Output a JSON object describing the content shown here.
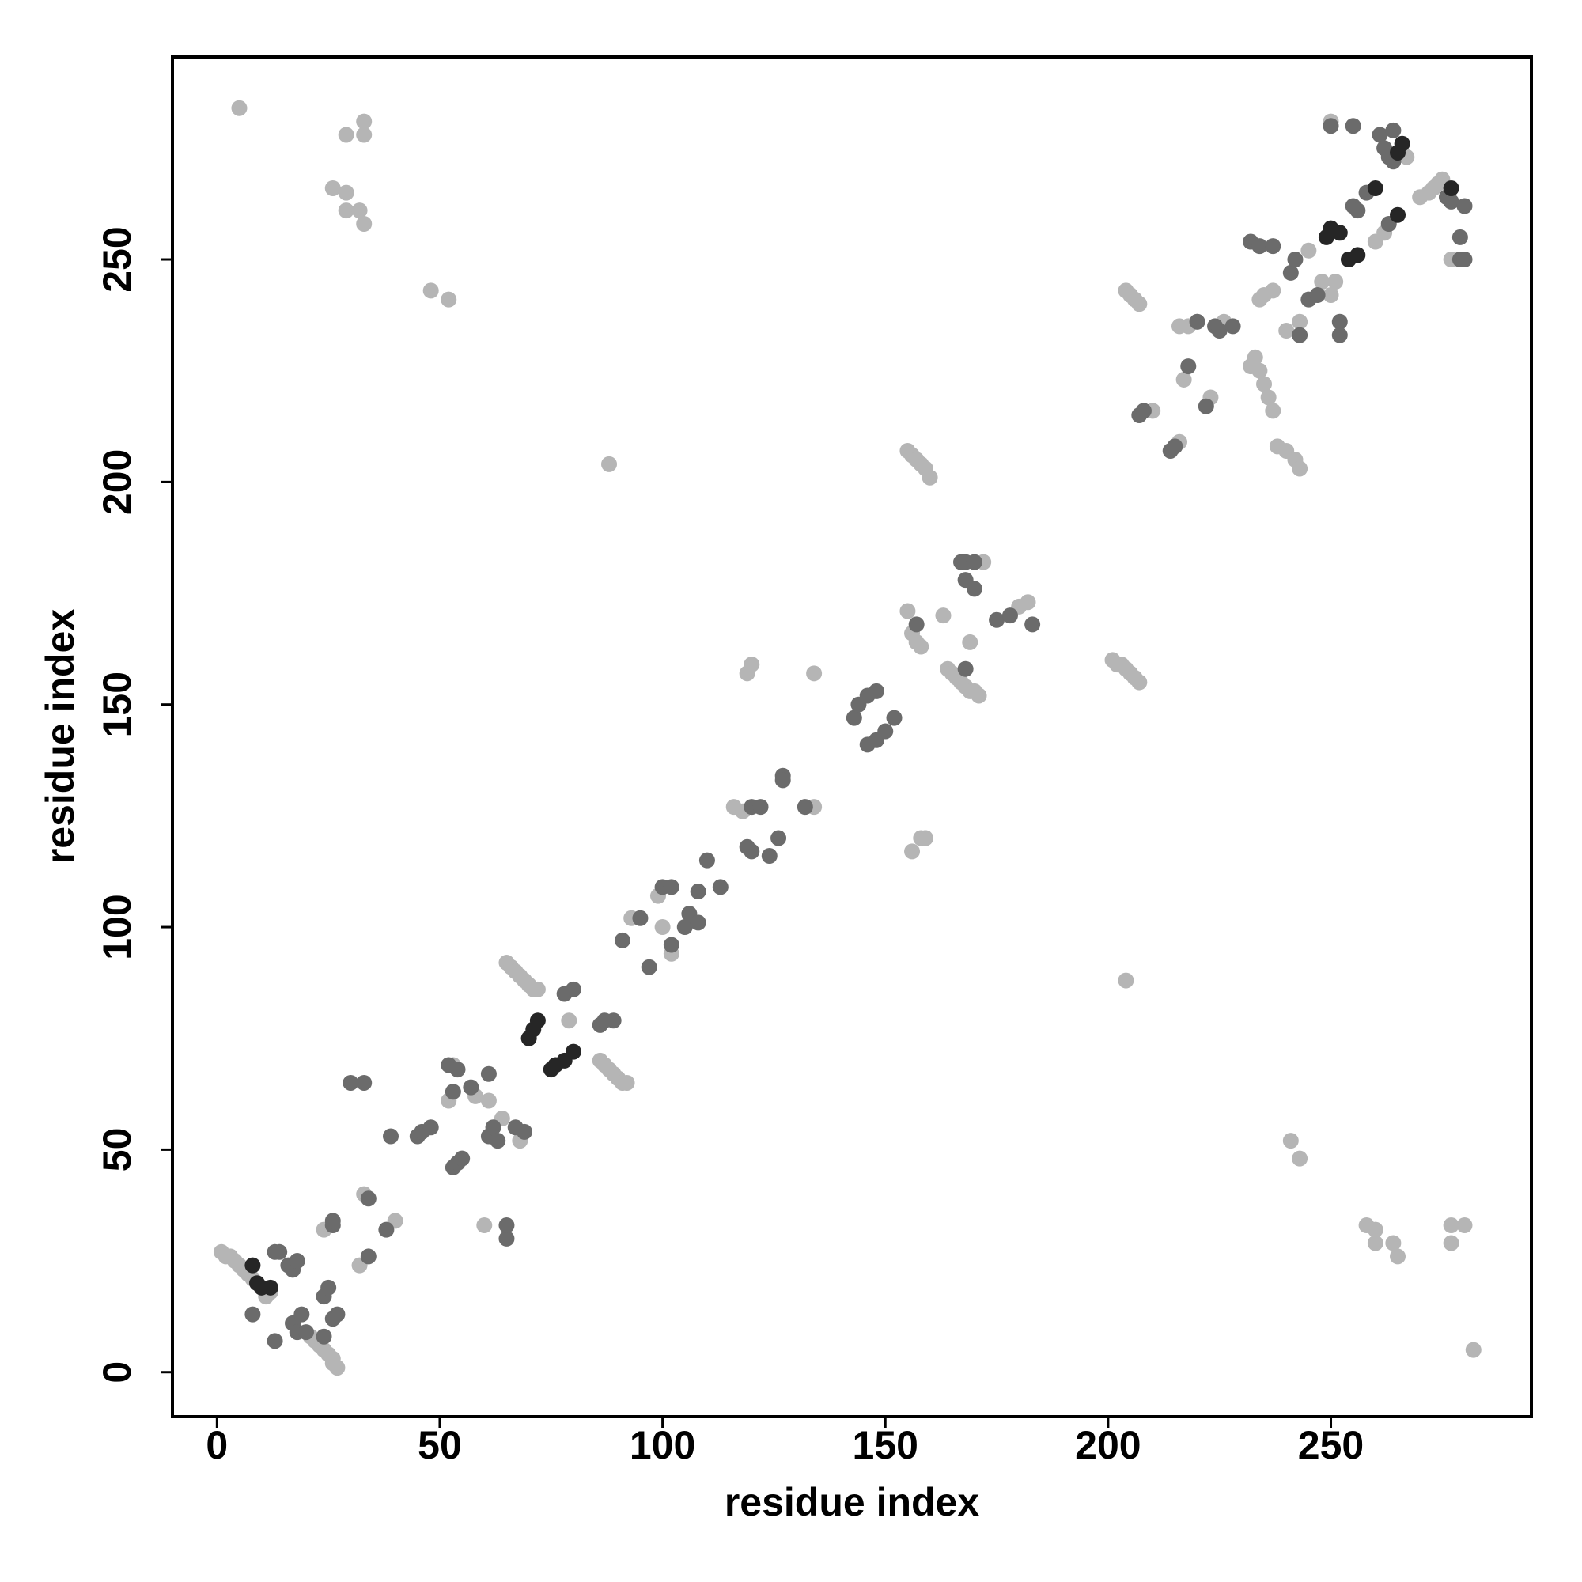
{
  "chart_data": {
    "type": "scatter",
    "xlabel": "residue index",
    "ylabel": "residue index",
    "xlim": [
      -10,
      295
    ],
    "ylim": [
      -10,
      295.5
    ],
    "xticks": [
      0,
      50,
      100,
      150,
      200,
      250
    ],
    "yticks": [
      0,
      50,
      100,
      150,
      200,
      250
    ],
    "grid": false,
    "series": [
      {
        "color": "#b5b5b5",
        "x": [
          5,
          29,
          33,
          33,
          26,
          29,
          29,
          32,
          33,
          48,
          52,
          88,
          204,
          241,
          243,
          258,
          260,
          260,
          264,
          265,
          277,
          277,
          280,
          282,
          1,
          2,
          3,
          4,
          5,
          6,
          7,
          8,
          11,
          12,
          27,
          26,
          26,
          25,
          24,
          23,
          22,
          21,
          17,
          24,
          32,
          33,
          40,
          61,
          60,
          55,
          53,
          52,
          58,
          63,
          64,
          68,
          65,
          66,
          67,
          68,
          69,
          70,
          71,
          72,
          79,
          86,
          87,
          88,
          89,
          90,
          91,
          92,
          93,
          99,
          102,
          100,
          116,
          118,
          134,
          119,
          120,
          134,
          155,
          156,
          157,
          158,
          159,
          156,
          158,
          159,
          155,
          156,
          157,
          158,
          159,
          160,
          163,
          164,
          165,
          166,
          167,
          168,
          169,
          170,
          171,
          169,
          172,
          180,
          182,
          201,
          202,
          203,
          204,
          205,
          206,
          207,
          204,
          205,
          206,
          207,
          210,
          216,
          217,
          216,
          218,
          220,
          223,
          226,
          232,
          233,
          234,
          235,
          236,
          237,
          234,
          235,
          237,
          238,
          240,
          242,
          243,
          240,
          243,
          245,
          248,
          250,
          251,
          250,
          260,
          262,
          267,
          270,
          272,
          273,
          274,
          275,
          277
        ],
        "y": [
          284,
          278,
          281,
          278,
          266,
          265,
          261,
          261,
          258,
          243,
          241,
          204,
          88,
          52,
          48,
          33,
          32,
          29,
          29,
          26,
          33,
          29,
          33,
          5,
          27,
          26,
          26,
          25,
          24,
          23,
          22,
          21,
          17,
          18,
          1,
          2,
          3,
          4,
          5,
          6,
          7,
          8,
          11,
          32,
          24,
          40,
          34,
          61,
          33,
          48,
          69,
          61,
          62,
          52,
          57,
          52,
          92,
          91,
          90,
          89,
          88,
          87,
          86,
          86,
          79,
          70,
          69,
          68,
          67,
          66,
          65,
          65,
          102,
          107,
          94,
          100,
          127,
          126,
          127,
          157,
          159,
          157,
          171,
          166,
          164,
          163,
          120,
          117,
          120,
          120,
          207,
          206,
          205,
          204,
          203,
          201,
          170,
          158,
          157,
          156,
          155,
          154,
          153,
          153,
          152,
          164,
          182,
          172,
          173,
          160,
          159,
          159,
          158,
          157,
          156,
          155,
          243,
          242,
          241,
          240,
          216,
          209,
          223,
          235,
          235,
          236,
          219,
          236,
          226,
          228,
          225,
          222,
          219,
          216,
          241,
          242,
          243,
          208,
          207,
          205,
          203,
          234,
          236,
          252,
          245,
          242,
          245,
          281,
          254,
          256,
          273,
          264,
          265,
          266,
          267,
          268,
          250
        ]
      },
      {
        "color": "#6b6b6b",
        "x": [
          13,
          14,
          16,
          17,
          18,
          8,
          13,
          17,
          18,
          19,
          20,
          24,
          24,
          25,
          26,
          27,
          26,
          26,
          34,
          38,
          34,
          30,
          33,
          39,
          65,
          65,
          45,
          46,
          48,
          53,
          54,
          55,
          52,
          53,
          54,
          57,
          61,
          61,
          62,
          63,
          67,
          69,
          78,
          80,
          86,
          87,
          89,
          91,
          97,
          95,
          100,
          102,
          102,
          105,
          106,
          108,
          108,
          110,
          113,
          120,
          122,
          119,
          120,
          124,
          126,
          127,
          127,
          132,
          143,
          144,
          146,
          148,
          146,
          148,
          150,
          152,
          157,
          168,
          167,
          168,
          170,
          168,
          170,
          175,
          178,
          183,
          207,
          208,
          214,
          215,
          218,
          220,
          222,
          224,
          225,
          228,
          232,
          234,
          237,
          241,
          242,
          243,
          245,
          247,
          250,
          252,
          252,
          254,
          255,
          256,
          258,
          255,
          263,
          261,
          262,
          263,
          264,
          276,
          277,
          279,
          279,
          280,
          280,
          264
        ],
        "y": [
          27,
          27,
          24,
          23,
          25,
          13,
          7,
          11,
          9,
          13,
          9,
          8,
          17,
          19,
          12,
          13,
          33,
          34,
          39,
          32,
          26,
          65,
          65,
          53,
          30,
          33,
          53,
          54,
          55,
          46,
          47,
          48,
          69,
          63,
          68,
          64,
          67,
          53,
          55,
          52,
          55,
          54,
          85,
          86,
          78,
          79,
          79,
          97,
          91,
          102,
          109,
          109,
          96,
          100,
          103,
          101,
          108,
          115,
          109,
          127,
          127,
          118,
          117,
          116,
          120,
          134,
          133,
          127,
          147,
          150,
          152,
          153,
          141,
          142,
          144,
          147,
          168,
          158,
          182,
          182,
          182,
          178,
          176,
          169,
          170,
          168,
          215,
          216,
          207,
          208,
          226,
          236,
          217,
          235,
          234,
          235,
          254,
          253,
          253,
          247,
          250,
          233,
          241,
          242,
          280,
          236,
          233,
          250,
          262,
          261,
          265,
          280,
          258,
          278,
          275,
          273,
          272,
          264,
          263,
          255,
          250,
          250,
          262,
          279
        ]
      },
      {
        "color": "#262626",
        "x": [
          8,
          9,
          10,
          12,
          70,
          71,
          72,
          75,
          76,
          78,
          80,
          249,
          250,
          252,
          254,
          256,
          260,
          265,
          265,
          266,
          277
        ],
        "y": [
          24,
          20,
          19,
          19,
          75,
          77,
          79,
          68,
          69,
          70,
          72,
          255,
          257,
          256,
          250,
          251,
          266,
          260,
          274,
          276,
          266
        ]
      }
    ]
  }
}
